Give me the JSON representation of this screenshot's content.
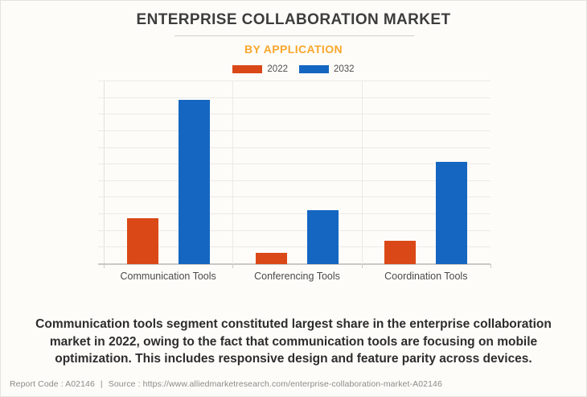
{
  "page": {
    "title": "ENTERPRISE COLLABORATION MARKET",
    "subtitle": "BY APPLICATION",
    "description": "Communication tools segment constituted largest share in the enterprise collaboration market in 2022, owing to the fact that communication tools are focusing on mobile optimization. This includes responsive design and feature parity across devices.",
    "footer": {
      "report_code_label": "Report Code : A02146",
      "separator": "|",
      "source_label": "Source : https://www.alliedmarketresearch.com/enterprise-collaboration-market-A02146"
    }
  },
  "colors": {
    "title_text": "#3d3d3d",
    "subtitle_text": "#f9a72b",
    "series_2022": "#da4817",
    "series_2032": "#1566c1",
    "gridline": "#eceae6",
    "baseline": "#cbc9c5",
    "description_text": "#2d2d2d",
    "footer_text": "#8d8b88"
  },
  "chart_data": {
    "type": "bar",
    "title": "ENTERPRISE COLLABORATION MARKET",
    "subtitle": "BY APPLICATION",
    "categories": [
      "Communication Tools",
      "Conferencing Tools",
      "Coordination Tools"
    ],
    "series": [
      {
        "name": "2022",
        "color": "#da4817",
        "values": [
          25,
          6,
          13
        ]
      },
      {
        "name": "2032",
        "color": "#1566c1",
        "values": [
          90,
          29.5,
          56
        ]
      }
    ],
    "xlabel": "",
    "ylabel": "",
    "ylim": [
      0,
      100
    ],
    "units": "relative % of axis maximum (y-axis unlabeled in source)",
    "y_axis_labels_visible": false,
    "gridline_intervals": 11,
    "grid": true,
    "legend_position": "top"
  }
}
